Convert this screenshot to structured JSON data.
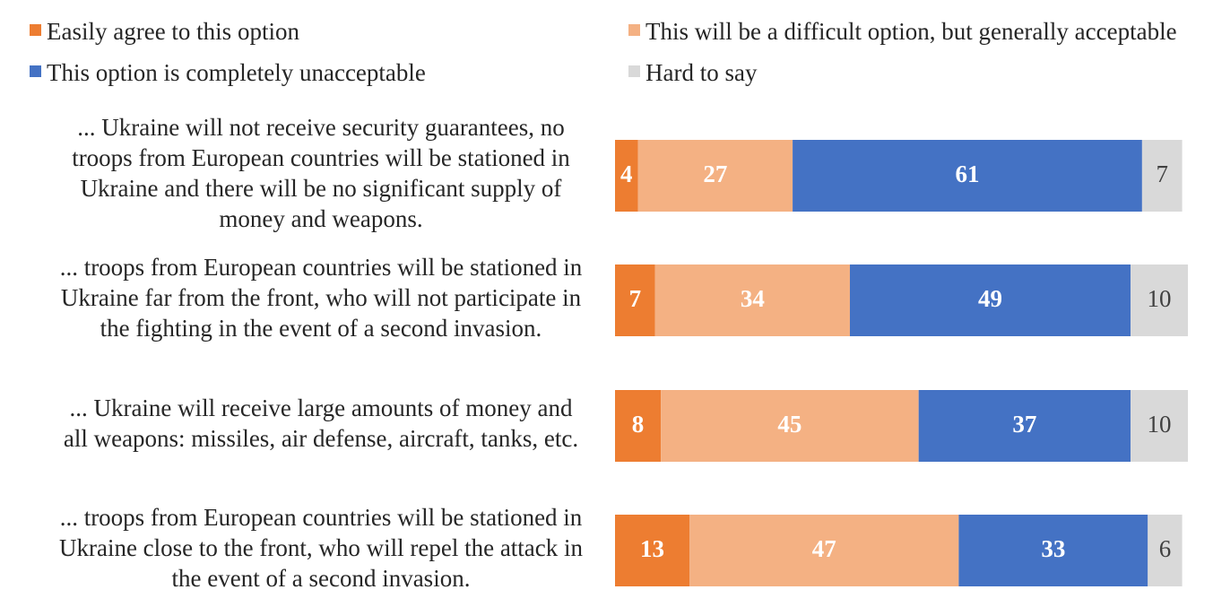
{
  "chart_data": {
    "type": "bar",
    "orientation": "horizontal",
    "stacked": true,
    "percent_scale": true,
    "xlim": [
      0,
      100
    ],
    "legend_position": "top",
    "grid": false,
    "categories": [
      "... Ukraine will not receive security guarantees, no troops from European countries will be stationed in Ukraine and there will be no significant supply of money and weapons.",
      "... troops from European countries will be stationed in Ukraine far from the front, who will not participate in the fighting in the event of a second invasion.",
      "... Ukraine will receive large amounts of money and all weapons: missiles, air defense, aircraft, tanks, etc.",
      "... troops from European countries will be stationed in Ukraine close to the front, who will repel the attack in the event of a second invasion."
    ],
    "category_lines": [
      [
        "... Ukraine will not receive security guarantees, no",
        "troops from European countries will be stationed in",
        "Ukraine and there will be no significant supply of",
        "money and weapons."
      ],
      [
        "... troops from European countries will be stationed in",
        "Ukraine far from the front, who will not participate in",
        "the fighting in the event of a second invasion."
      ],
      [
        "... Ukraine will receive large amounts of money and",
        "all weapons: missiles, air defense, aircraft, tanks, etc."
      ],
      [
        "... troops from European countries will be stationed in",
        "Ukraine close to the front, who will repel the attack in",
        "the event of a second invasion."
      ]
    ],
    "series": [
      {
        "name": "Easily agree to this option",
        "color": "#ED7D31",
        "label_color": "#FFFFFF",
        "label_bold": true,
        "values": [
          4,
          7,
          8,
          13
        ]
      },
      {
        "name": "This will be a difficult option, but generally acceptable",
        "color": "#F4B183",
        "label_color": "#FFFFFF",
        "label_bold": true,
        "values": [
          27,
          34,
          45,
          47
        ]
      },
      {
        "name": "This option is completely unacceptable",
        "color": "#4472C4",
        "label_color": "#FFFFFF",
        "label_bold": true,
        "values": [
          61,
          49,
          37,
          33
        ]
      },
      {
        "name": "Hard to say",
        "color": "#D9D9D9",
        "label_color": "#404040",
        "label_bold": false,
        "values": [
          7,
          10,
          10,
          6
        ]
      }
    ]
  }
}
